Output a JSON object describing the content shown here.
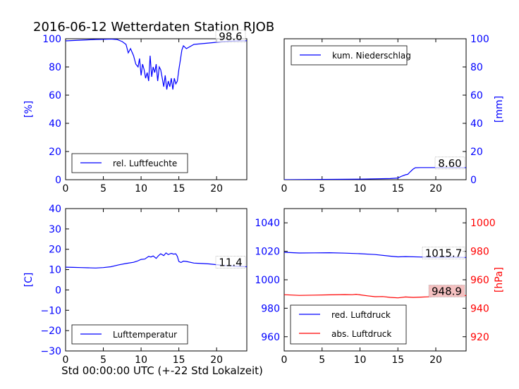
{
  "title": "2016-06-12 Wetterdaten Station RJOB",
  "xlabel": "Std 00:00:00 UTC (+-22 Std Lokalzeit)",
  "colors": {
    "primary": "#0000ff",
    "secondary": "#ff0000",
    "axis": "#000000"
  },
  "x_ticks": [
    "0",
    "5",
    "10",
    "15",
    "20"
  ],
  "chart_data": [
    {
      "type": "line",
      "panel": "top-left",
      "ylabel": "[%]",
      "ylim": [
        0,
        100
      ],
      "xlim": [
        0,
        24
      ],
      "yticks": [
        "0",
        "20",
        "40",
        "60",
        "80",
        "100"
      ],
      "legend_placement": "bottom-left",
      "series": [
        {
          "name": "rel. Luftfeuchte",
          "color": "#0000ff",
          "x": [
            0,
            2,
            4,
            5,
            6,
            6.8,
            7.5,
            8,
            8.3,
            8.6,
            9,
            9.3,
            9.6,
            9.8,
            10,
            10.2,
            10.4,
            10.6,
            10.8,
            11,
            11.2,
            11.4,
            11.6,
            11.8,
            12,
            12.2,
            12.4,
            12.6,
            12.8,
            13,
            13.2,
            13.4,
            13.6,
            13.8,
            14,
            14.2,
            14.4,
            14.6,
            14.8,
            15,
            15.2,
            15.4,
            15.6,
            16,
            17,
            18,
            19,
            20,
            21,
            22,
            23,
            24
          ],
          "y": [
            98.5,
            99,
            99.5,
            99.6,
            99.8,
            99.5,
            98,
            96,
            90,
            93,
            88,
            82,
            80,
            86,
            74,
            82,
            78,
            72,
            76,
            70,
            88,
            73,
            80,
            76,
            82,
            70,
            80,
            78,
            72,
            66,
            74,
            64,
            70,
            66,
            72,
            64,
            72,
            68,
            70,
            78,
            85,
            92,
            95,
            93,
            96,
            96.5,
            97,
            97.5,
            98,
            98.3,
            98.5,
            98.6
          ]
        }
      ],
      "annotation": "98.6"
    },
    {
      "type": "line",
      "panel": "top-right",
      "ylabel": "[mm]",
      "ylim": [
        0,
        100
      ],
      "xlim": [
        0,
        24
      ],
      "yticks": [
        "0",
        "20",
        "40",
        "60",
        "80",
        "100"
      ],
      "legend_placement": "top-left",
      "series": [
        {
          "name": "kum. Niederschlag",
          "color": "#0000ff",
          "x": [
            0,
            5,
            10,
            14,
            15,
            15.5,
            16,
            16.3,
            16.6,
            17,
            17.3,
            18,
            20,
            22,
            24
          ],
          "y": [
            0,
            0.2,
            0.4,
            0.8,
            1.2,
            2.5,
            3.5,
            3.8,
            5.5,
            7.5,
            8.5,
            8.6,
            8.6,
            8.6,
            8.6
          ]
        }
      ],
      "annotation": "8.60"
    },
    {
      "type": "line",
      "panel": "bottom-left",
      "ylabel": "[C]",
      "ylim": [
        -30,
        40
      ],
      "xlim": [
        0,
        24
      ],
      "yticks": [
        "−30",
        "−20",
        "−10",
        "0",
        "10",
        "20",
        "30",
        "40"
      ],
      "legend_placement": "bottom-left",
      "series": [
        {
          "name": "Lufttemperatur",
          "color": "#0000ff",
          "x": [
            0,
            1,
            2,
            3,
            4,
            5,
            6,
            7,
            8,
            9,
            9.5,
            10,
            10.5,
            11,
            11.3,
            11.6,
            12,
            12.3,
            12.6,
            13,
            13.3,
            13.6,
            14,
            14.3,
            14.6,
            14.8,
            15,
            15.3,
            15.6,
            16,
            17,
            18,
            19,
            20,
            21,
            22,
            23,
            24
          ],
          "y": [
            11.2,
            11.1,
            11.0,
            10.9,
            10.8,
            11.0,
            11.4,
            12.3,
            13.0,
            13.6,
            14.2,
            15.0,
            15.2,
            16.5,
            16.2,
            16.7,
            15.5,
            16.8,
            17.8,
            16.9,
            18.2,
            17.4,
            18.0,
            17.6,
            17.8,
            16.5,
            14.0,
            13.5,
            14.2,
            14.0,
            13.2,
            13.0,
            12.8,
            12.4,
            12.0,
            11.8,
            11.6,
            11.4
          ]
        }
      ],
      "annotation": "11.4"
    },
    {
      "type": "line",
      "panel": "bottom-right",
      "ylabel": "[hPa]",
      "ylim": [
        950,
        1050
      ],
      "ylim_right": [
        910,
        1010
      ],
      "xlim": [
        0,
        24
      ],
      "yticks": [
        "960",
        "980",
        "1000",
        "1020",
        "1040"
      ],
      "yticks_right": [
        "920",
        "940",
        "960",
        "980",
        "1000"
      ],
      "legend_placement": "bottom-left",
      "series": [
        {
          "name": "red. Luftdruck",
          "color": "#0000ff",
          "axis": "left",
          "x": [
            0,
            2,
            4,
            6,
            8,
            10,
            12,
            14,
            15,
            16,
            18,
            20,
            22,
            24
          ],
          "y": [
            1019.3,
            1018.8,
            1018.9,
            1019.0,
            1018.7,
            1018.3,
            1017.7,
            1016.6,
            1016.1,
            1016.3,
            1016.0,
            1015.8,
            1015.9,
            1015.7
          ]
        },
        {
          "name": "abs. Luftdruck",
          "color": "#ff0000",
          "axis": "right",
          "x": [
            0,
            2,
            4,
            6,
            8,
            9,
            9.5,
            10,
            11,
            12,
            13,
            14,
            15,
            16,
            17,
            18,
            19,
            20,
            21,
            22,
            23,
            24
          ],
          "y": [
            949.5,
            949.0,
            949.2,
            949.4,
            949.6,
            949.5,
            949.8,
            949.4,
            948.7,
            948.1,
            948.2,
            947.6,
            947.3,
            947.9,
            947.6,
            947.8,
            948.0,
            948.2,
            948.4,
            948.6,
            948.8,
            948.9
          ]
        }
      ],
      "annotations": [
        "1015.7",
        "948.9"
      ]
    }
  ]
}
